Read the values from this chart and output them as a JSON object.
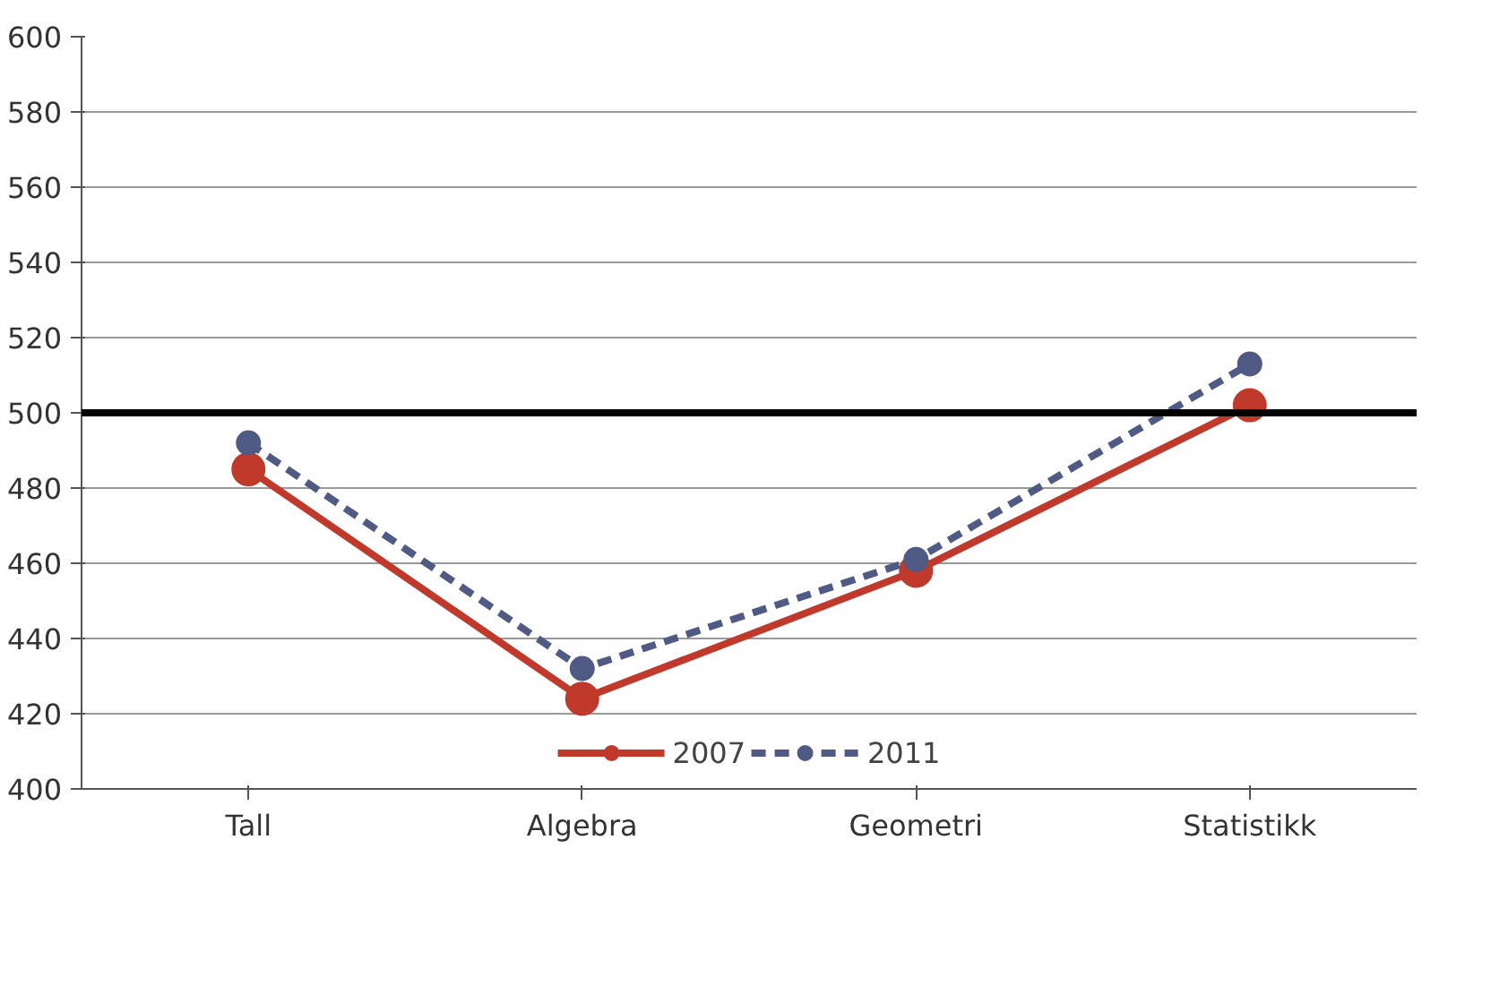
{
  "chart_data": {
    "type": "line",
    "categories": [
      "Tall",
      "Algebra",
      "Geometri",
      "Statistikk"
    ],
    "series": [
      {
        "name": "2007",
        "color": "#c0392b",
        "values": [
          485,
          424,
          458,
          502
        ],
        "line_style": "solid"
      },
      {
        "name": "2011",
        "color": "#4f5a85",
        "values": [
          492,
          432,
          461,
          513
        ],
        "line_style": "dashed"
      }
    ],
    "ylim": [
      400,
      600
    ],
    "yticks": [
      400,
      420,
      440,
      460,
      480,
      500,
      520,
      540,
      560,
      580,
      600
    ],
    "ref_lines": [
      {
        "axis": "y",
        "value": 500,
        "label": null,
        "color": "#000000"
      }
    ],
    "grid": "y",
    "legend": "bottom",
    "marker": "circle"
  }
}
